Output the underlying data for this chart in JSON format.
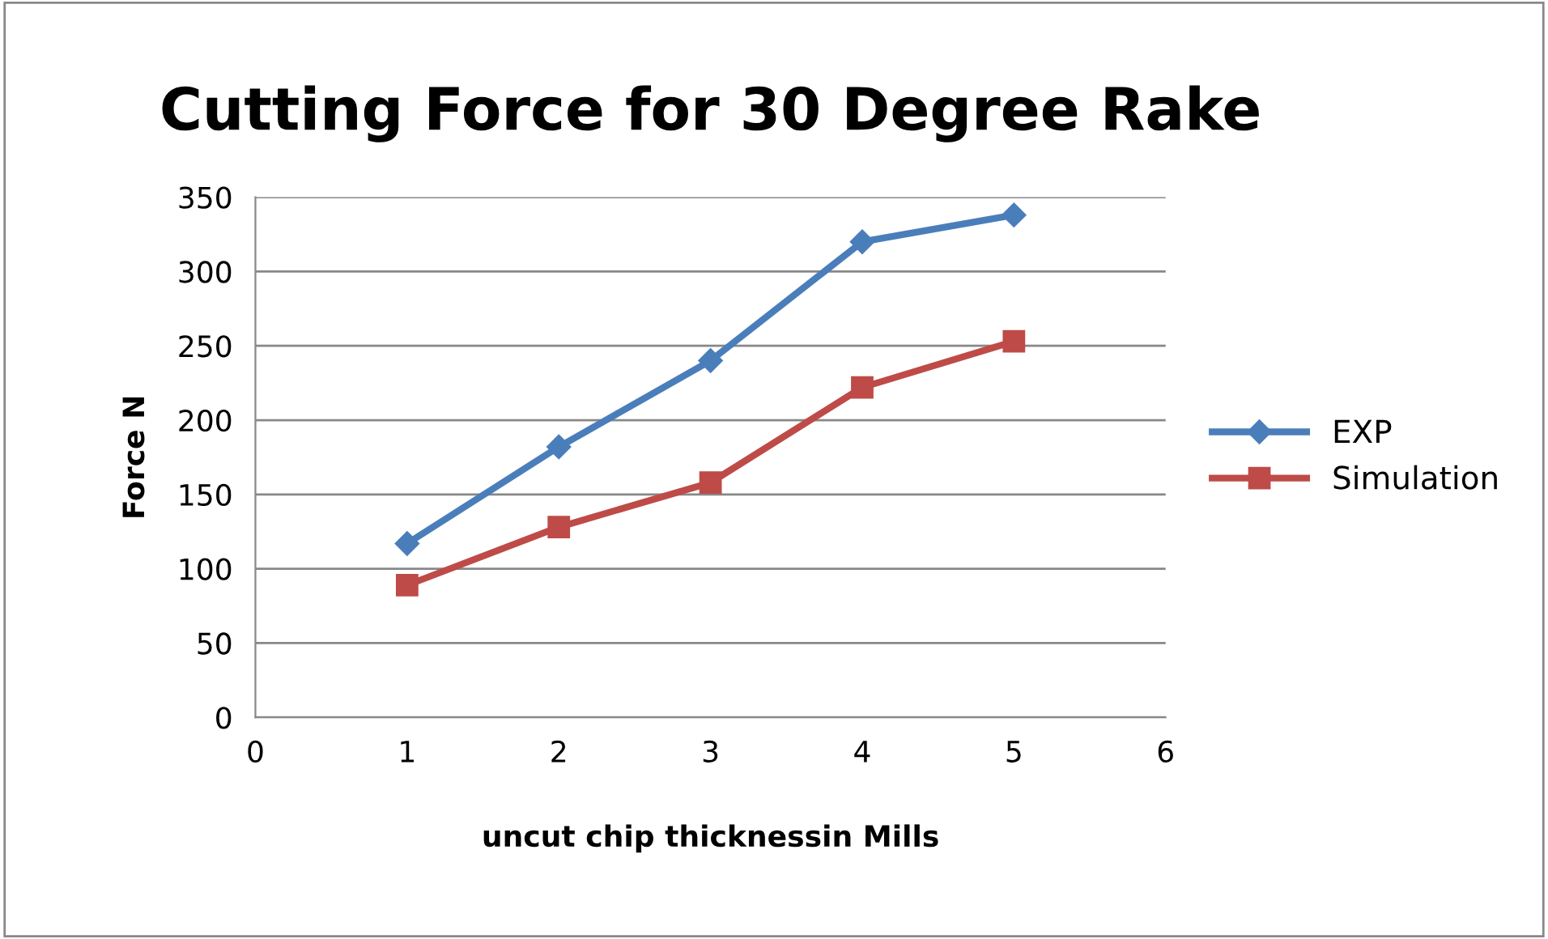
{
  "chart_data": {
    "type": "line",
    "title": "Cutting Force for 30 Degree Rake",
    "xlabel": "uncut chip thicknessin Mills",
    "ylabel": "Force N",
    "x": [
      1,
      2,
      3,
      4,
      5
    ],
    "series": [
      {
        "name": "EXP",
        "color": "#4a7ebb",
        "values": [
          117,
          182,
          240,
          320,
          338
        ],
        "marker": "diamond"
      },
      {
        "name": "Simulation",
        "color": "#be4b48",
        "values": [
          89,
          128,
          158,
          222,
          253
        ],
        "marker": "square"
      }
    ],
    "xlim": [
      0,
      6
    ],
    "xticks": [
      0,
      1,
      2,
      3,
      4,
      5,
      6
    ],
    "ylim": [
      0,
      350
    ],
    "yticks": [
      0,
      50,
      100,
      150,
      200,
      250,
      300,
      350
    ],
    "grid": "y",
    "legend": "right",
    "line_style": "solid"
  }
}
